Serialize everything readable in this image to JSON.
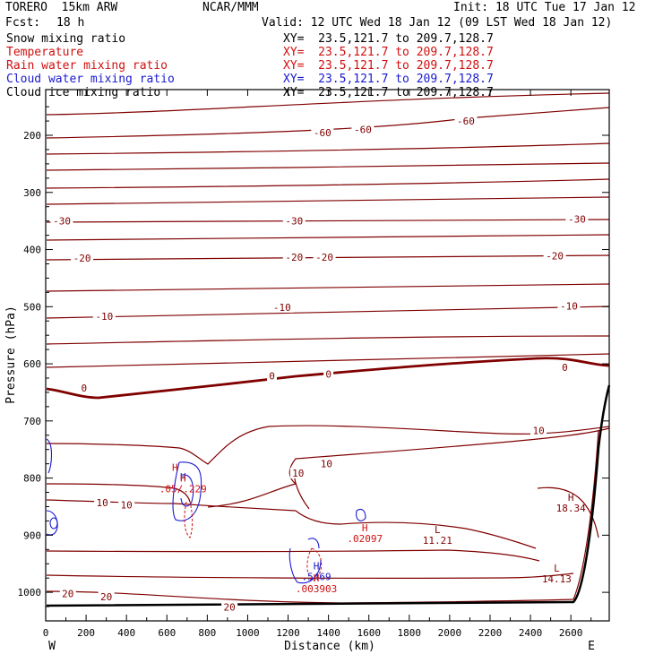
{
  "header": {
    "model_left": "TORERO  15km ARW",
    "source": "NCAR/MMM",
    "init": "Init: 18 UTC Tue 17 Jan 12",
    "fcst_label": "Fcst:",
    "fcst_value": "18 h",
    "valid": "Valid: 12 UTC Wed 18 Jan 12 (09 LST Wed 18 Jan 12)"
  },
  "fields": [
    {
      "name": "Snow mixing ratio",
      "xy": "XY=  23.5,121.7 to 209.7,128.7",
      "color": "#000000"
    },
    {
      "name": "Temperature",
      "xy": "XY=  23.5,121.7 to 209.7,128.7",
      "color": "#d01010"
    },
    {
      "name": "Rain water mixing ratio",
      "xy": "XY=  23.5,121.7 to 209.7,128.7",
      "color": "#d01010"
    },
    {
      "name": "Cloud water mixing ratio",
      "xy": "XY=  23.5,121.7 to 209.7,128.7",
      "color": "#1a1ad0"
    },
    {
      "name": "Cloud ice mixing ratio",
      "xy": "XY=  23.5,121.7 to 209.7,128.7",
      "color": "#000000"
    }
  ],
  "chart_data": {
    "type": "contour",
    "xlabel": "Distance (km)",
    "ylabel": "Pressure (hPa)",
    "x_ticks": [
      0,
      200,
      400,
      600,
      800,
      1000,
      1200,
      1400,
      1600,
      1800,
      2000,
      2200,
      2400,
      2600
    ],
    "y_ticks": [
      200,
      300,
      400,
      500,
      600,
      700,
      800,
      900,
      1000
    ],
    "xlim": [
      0,
      2790
    ],
    "ylim": [
      1050,
      120
    ],
    "x_end_labels": [
      "W",
      "E"
    ],
    "temperature_contour_labels": [
      {
        "text": "-60",
        "x": 1370,
        "p": 195
      },
      {
        "text": "-60",
        "x": 1570,
        "p": 190
      },
      {
        "text": "-60",
        "x": 2080,
        "p": 175
      },
      {
        "text": "-30",
        "x": 80,
        "p": 350
      },
      {
        "text": "-30",
        "x": 1230,
        "p": 350
      },
      {
        "text": "-30",
        "x": 2630,
        "p": 347
      },
      {
        "text": "-20",
        "x": 180,
        "p": 415
      },
      {
        "text": "-20",
        "x": 1230,
        "p": 413
      },
      {
        "text": "-20",
        "x": 1380,
        "p": 413
      },
      {
        "text": "-20",
        "x": 2520,
        "p": 411
      },
      {
        "text": "-10",
        "x": 290,
        "p": 517
      },
      {
        "text": "-10",
        "x": 1170,
        "p": 501
      },
      {
        "text": "-10",
        "x": 2590,
        "p": 499
      },
      {
        "text": "0",
        "x": 190,
        "p": 642
      },
      {
        "text": "0",
        "x": 1120,
        "p": 621
      },
      {
        "text": "0",
        "x": 1400,
        "p": 618
      },
      {
        "text": "0",
        "x": 2570,
        "p": 606
      },
      {
        "text": "10",
        "x": 280,
        "p": 843
      },
      {
        "text": "10",
        "x": 400,
        "p": 847
      },
      {
        "text": "10",
        "x": 1250,
        "p": 791
      },
      {
        "text": "10",
        "x": 1390,
        "p": 775
      },
      {
        "text": "10",
        "x": 2440,
        "p": 717
      },
      {
        "text": "20",
        "x": 110,
        "p": 1002
      },
      {
        "text": "20",
        "x": 300,
        "p": 1008
      },
      {
        "text": "20",
        "x": 910,
        "p": 1026
      }
    ],
    "extrema": [
      {
        "kind": "H",
        "value": "",
        "x": 640,
        "p": 787,
        "color": "#d01010"
      },
      {
        "kind": "H",
        "value": "",
        "x": 680,
        "p": 804,
        "color": "#1a1ad0"
      },
      {
        "kind": "H",
        "value": ".05/.229",
        "x": 680,
        "p": 806,
        "color": "#d01010"
      },
      {
        "kind": "H",
        "value": ".5469",
        "x": 1340,
        "p": 960,
        "color": "#1a1ad0"
      },
      {
        "kind": "H",
        "value": ".003903",
        "x": 1340,
        "p": 981,
        "color": "#d01010"
      },
      {
        "kind": "H",
        "value": ".02097",
        "x": 1580,
        "p": 893,
        "color": "#d01010"
      },
      {
        "kind": "L",
        "value": "11.21",
        "x": 1940,
        "p": 896,
        "color": "#800000"
      },
      {
        "kind": "H",
        "value": "18.34",
        "x": 2600,
        "p": 840,
        "color": "#800000"
      },
      {
        "kind": "L",
        "value": "14.13",
        "x": 2530,
        "p": 964,
        "color": "#800000"
      }
    ]
  }
}
